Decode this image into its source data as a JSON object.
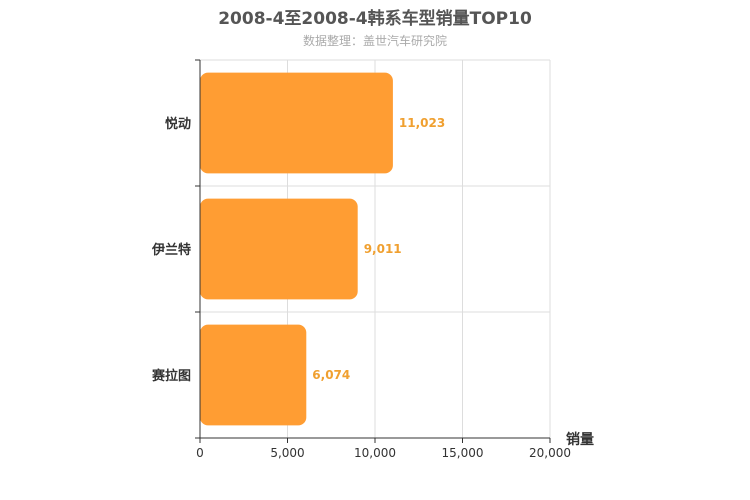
{
  "chart_data": {
    "type": "bar",
    "orientation": "horizontal",
    "title": "2008-4至2008-4韩系车型销量TOP10",
    "subtitle": "数据整理：盖世汽车研究院",
    "xlabel": "销量",
    "ylabel": "",
    "categories": [
      "悦动",
      "伊兰特",
      "赛拉图"
    ],
    "values": [
      11023,
      9011,
      6074
    ],
    "value_labels": [
      "11,023",
      "9,011",
      "6,074"
    ],
    "xlim": [
      0,
      20000
    ],
    "xticks": [
      0,
      5000,
      10000,
      15000,
      20000
    ],
    "xtick_labels": [
      "0",
      "5,000",
      "10,000",
      "15,000",
      "20,000"
    ],
    "grid": true,
    "bar_color": "#ff9d33",
    "value_label_color": "#f0a030"
  }
}
